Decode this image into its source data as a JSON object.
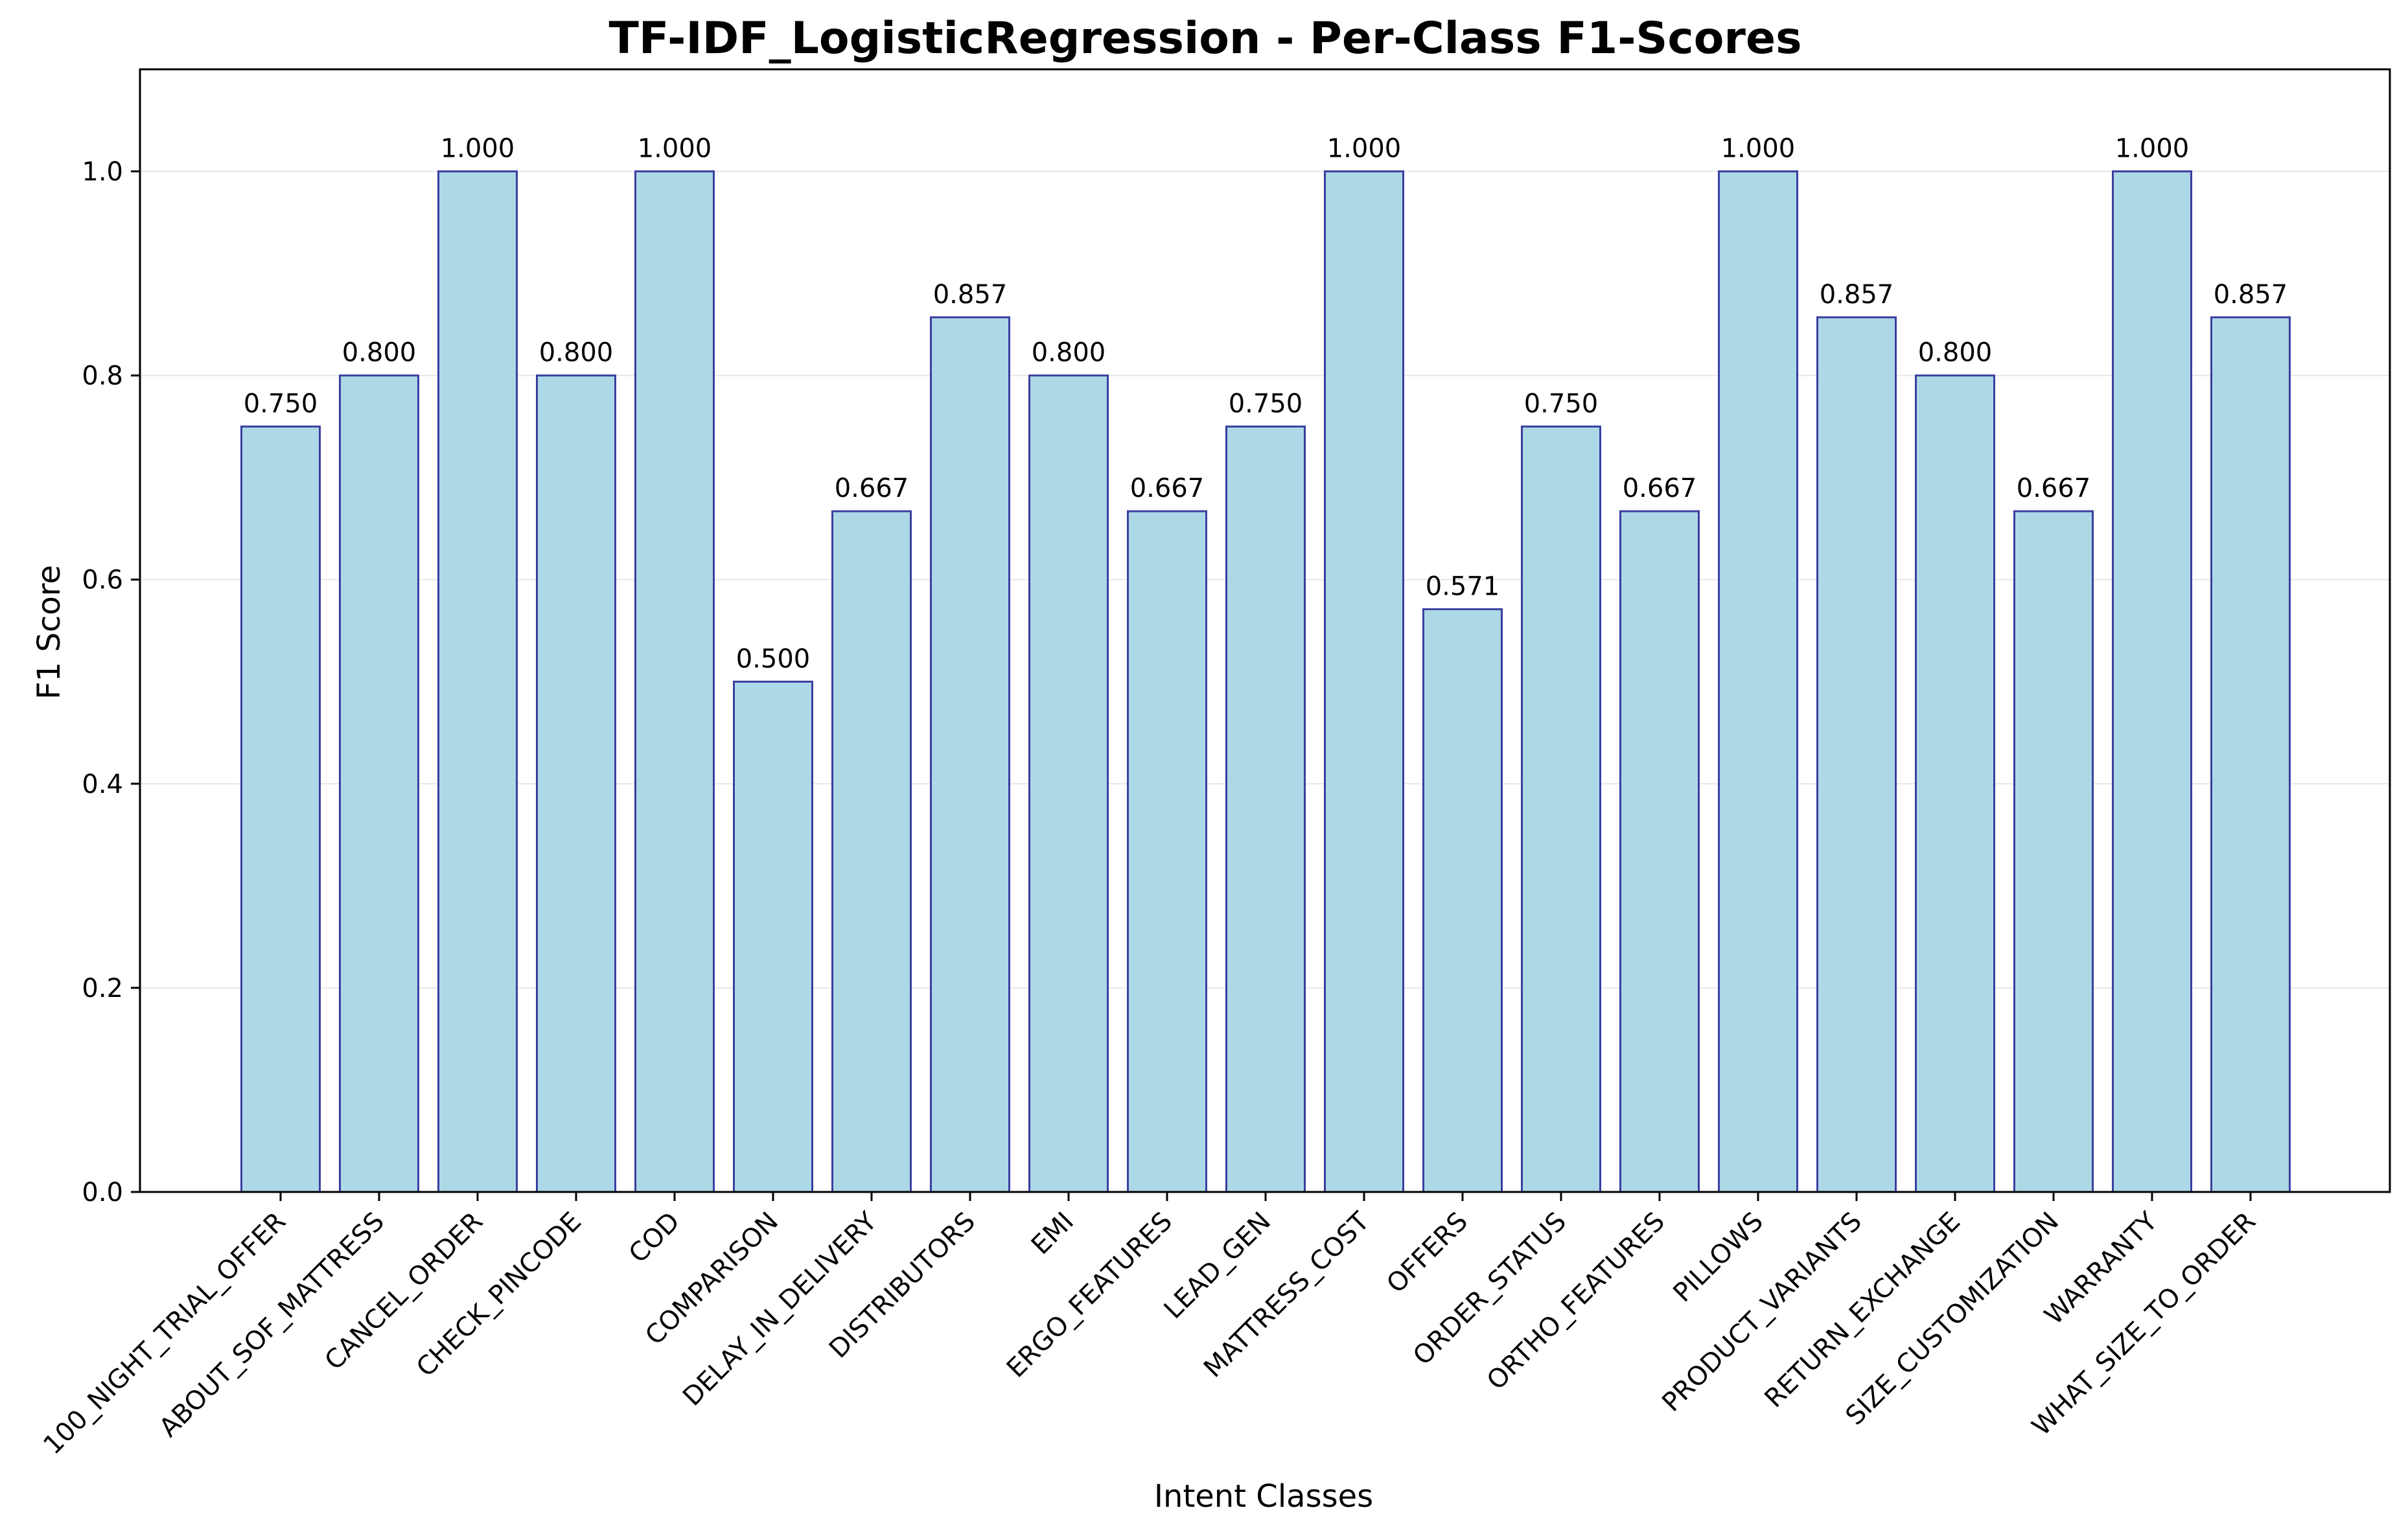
{
  "chart_data": {
    "type": "bar",
    "title": "TF-IDF_LogisticRegression - Per-Class F1-Scores",
    "xlabel": "Intent Classes",
    "ylabel": "F1 Score",
    "ylim": [
      0,
      1.1
    ],
    "yticks": [
      0.0,
      0.2,
      0.4,
      0.6,
      0.8,
      1.0
    ],
    "ytick_labels": [
      "0.0",
      "0.2",
      "0.4",
      "0.6",
      "0.8",
      "1.0"
    ],
    "grid": "y",
    "bar_fill": "#add8e6",
    "bar_edge": "#3a3fa0",
    "categories": [
      "100_NIGHT_TRIAL_OFFER",
      "ABOUT_SOF_MATTRESS",
      "CANCEL_ORDER",
      "CHECK_PINCODE",
      "COD",
      "COMPARISON",
      "DELAY_IN_DELIVERY",
      "DISTRIBUTORS",
      "EMI",
      "ERGO_FEATURES",
      "LEAD_GEN",
      "MATTRESS_COST",
      "OFFERS",
      "ORDER_STATUS",
      "ORTHO_FEATURES",
      "PILLOWS",
      "PRODUCT_VARIANTS",
      "RETURN_EXCHANGE",
      "SIZE_CUSTOMIZATION",
      "WARRANTY",
      "WHAT_SIZE_TO_ORDER"
    ],
    "values": [
      0.75,
      0.8,
      1.0,
      0.8,
      1.0,
      0.5,
      0.667,
      0.857,
      0.8,
      0.667,
      0.75,
      1.0,
      0.571,
      0.75,
      0.667,
      1.0,
      0.857,
      0.8,
      0.667,
      1.0,
      0.857
    ],
    "value_labels": [
      "0.750",
      "0.800",
      "1.000",
      "0.800",
      "1.000",
      "0.500",
      "0.667",
      "0.857",
      "0.800",
      "0.667",
      "0.750",
      "1.000",
      "0.571",
      "0.750",
      "0.667",
      "1.000",
      "0.857",
      "0.800",
      "0.667",
      "1.000",
      "0.857"
    ]
  }
}
